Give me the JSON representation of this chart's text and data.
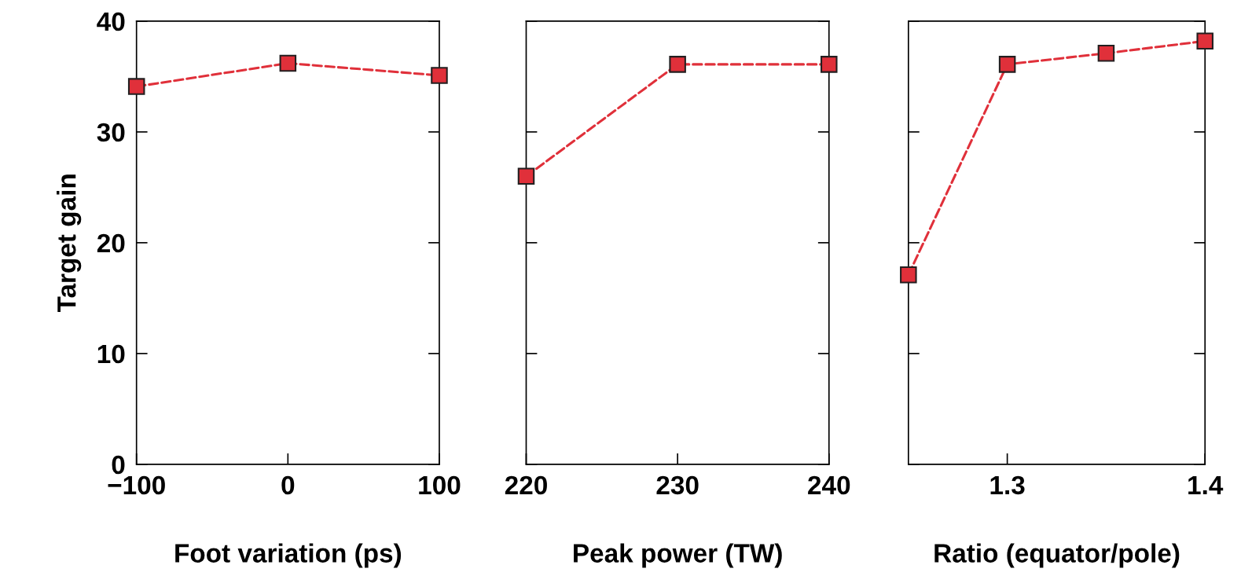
{
  "chart_data": [
    {
      "type": "line",
      "ylabel": "Target gain",
      "xlabel": "Foot variation (ps)",
      "x": [
        -100,
        0,
        100
      ],
      "series": [
        {
          "color": "#e0303a",
          "values": [
            34.1,
            36.2,
            35.1
          ]
        }
      ],
      "xlim": [
        -100,
        100
      ],
      "xticks": [
        {
          "value": -100,
          "label": "−100"
        },
        0,
        100
      ],
      "ylim": [
        0,
        40
      ],
      "yticks": [
        0,
        10,
        20,
        30,
        40
      ],
      "marker": "square",
      "line_style": "dashed",
      "grid": false,
      "legend": false
    },
    {
      "type": "line",
      "xlabel": "Peak power (TW)",
      "x": [
        220,
        230,
        240
      ],
      "series": [
        {
          "color": "#e0303a",
          "values": [
            26.0,
            36.1,
            36.1
          ]
        }
      ],
      "xlim": [
        220,
        240
      ],
      "xticks": [
        220,
        230,
        240
      ],
      "ylim": [
        0,
        40
      ],
      "yticks": [
        0,
        10,
        20,
        30,
        40
      ],
      "tick_labels": "x",
      "marker": "square",
      "line_style": "dashed",
      "grid": false,
      "legend": false
    },
    {
      "type": "line",
      "xlabel": "Ratio (equator/pole)",
      "x": [
        1.25,
        1.3,
        1.35,
        1.4
      ],
      "series": [
        {
          "color": "#e0303a",
          "values": [
            17.1,
            36.1,
            37.1,
            38.2
          ]
        }
      ],
      "xlim": [
        1.25,
        1.4
      ],
      "xticks": [
        1.3,
        1.4
      ],
      "ylim": [
        0,
        40
      ],
      "yticks": [
        0,
        10,
        20,
        30,
        40
      ],
      "tick_labels": "x",
      "marker": "square",
      "line_style": "dashed",
      "grid": false,
      "legend": false
    }
  ]
}
